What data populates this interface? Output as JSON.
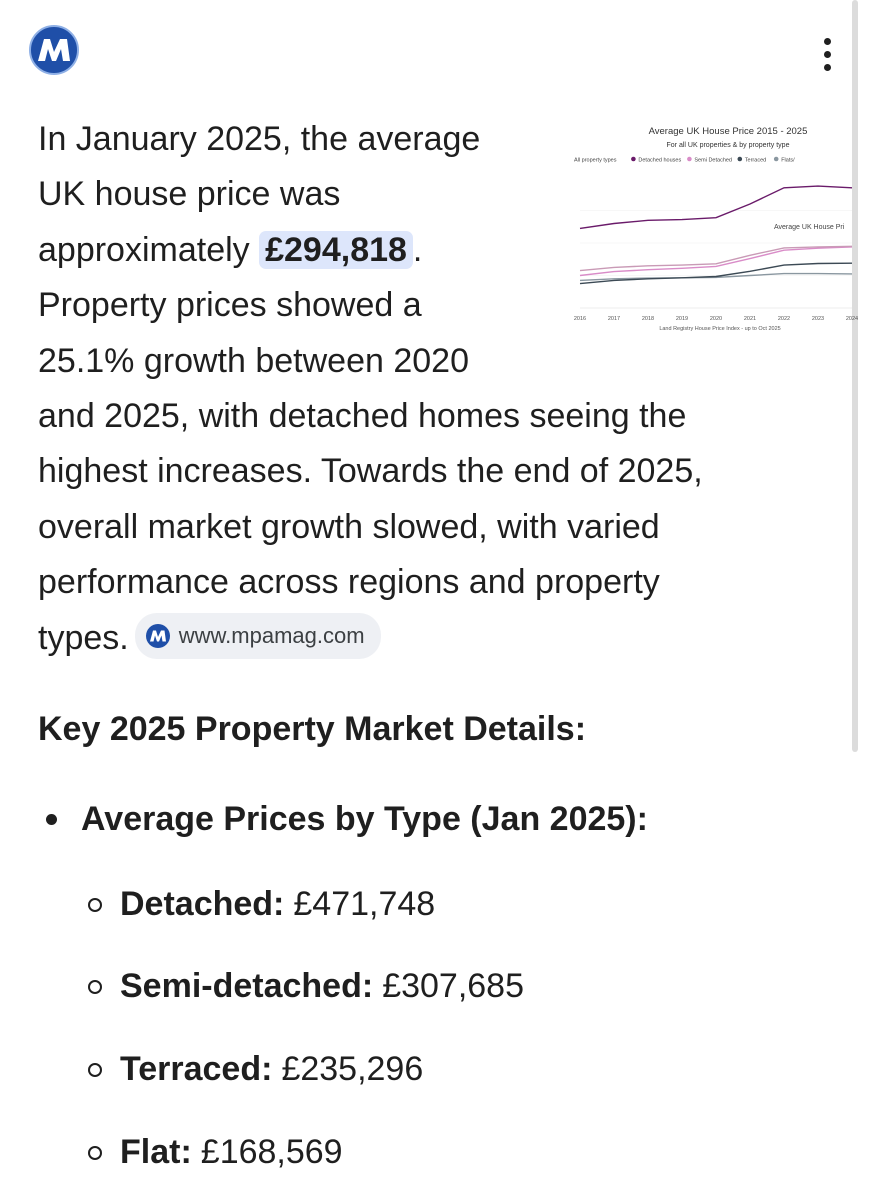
{
  "header": {
    "logo_icon": "mpamag-logo-icon",
    "menu_icon": "more-vert-icon"
  },
  "summary": {
    "lines": [
      "In January 2025, the average",
      "UK house price was",
      "approximately",
      "£294,818",
      ".",
      "Property prices showed a",
      "25.1% growth between 2020",
      "and 2025, with detached homes seeing the",
      "highest increases. Towards the end of 2025,",
      "overall market growth slowed, with varied",
      "performance across regions and property",
      "types."
    ],
    "source_label": "www.mpamag.com"
  },
  "chart_data": {
    "type": "line",
    "title": "Average UK House Price 2015 - 2025",
    "subtitle": "For all UK properties & by property type",
    "legend": [
      "All property types",
      "Detached houses",
      "Semi Detached",
      "Terraced",
      "Flats/"
    ],
    "annotation": "Average UK House Pri",
    "categories": [
      "2016",
      "2017",
      "2018",
      "2019",
      "2020",
      "2021",
      "2022",
      "2023",
      "2024"
    ],
    "footer": "Land Registry House Price Index - up to Oct 2025",
    "ylim": [
      100000,
      500000
    ],
    "colors": [
      "#c99ab6",
      "#6a1b6a",
      "#d98cc8",
      "#3c4a55",
      "#8a97a0"
    ],
    "series": [
      {
        "name": "All property types",
        "values": [
          215000,
          225000,
          230000,
          232000,
          236000,
          262000,
          285000,
          288000,
          290000
        ]
      },
      {
        "name": "Detached houses",
        "values": [
          345000,
          360000,
          370000,
          372000,
          378000,
          420000,
          470000,
          475000,
          470000
        ]
      },
      {
        "name": "Semi Detached",
        "values": [
          200000,
          212000,
          218000,
          222000,
          228000,
          252000,
          278000,
          284000,
          288000
        ]
      },
      {
        "name": "Terraced",
        "values": [
          175000,
          185000,
          190000,
          193000,
          197000,
          213000,
          232000,
          237000,
          238000
        ]
      },
      {
        "name": "Flats/",
        "values": [
          185000,
          190000,
          192000,
          193000,
          194000,
          200000,
          206000,
          206000,
          205000
        ]
      }
    ]
  },
  "key_details": {
    "heading": "Key 2025 Property Market Details:",
    "bullet_title": "Average Prices by Type (Jan 2025):",
    "items": [
      {
        "label": "Detached:",
        "value": "£471,748"
      },
      {
        "label": "Semi-detached:",
        "value": "£307,685"
      },
      {
        "label": "Terraced:",
        "value": "£235,296"
      },
      {
        "label": "Flat:",
        "value": "£168,569"
      }
    ]
  }
}
